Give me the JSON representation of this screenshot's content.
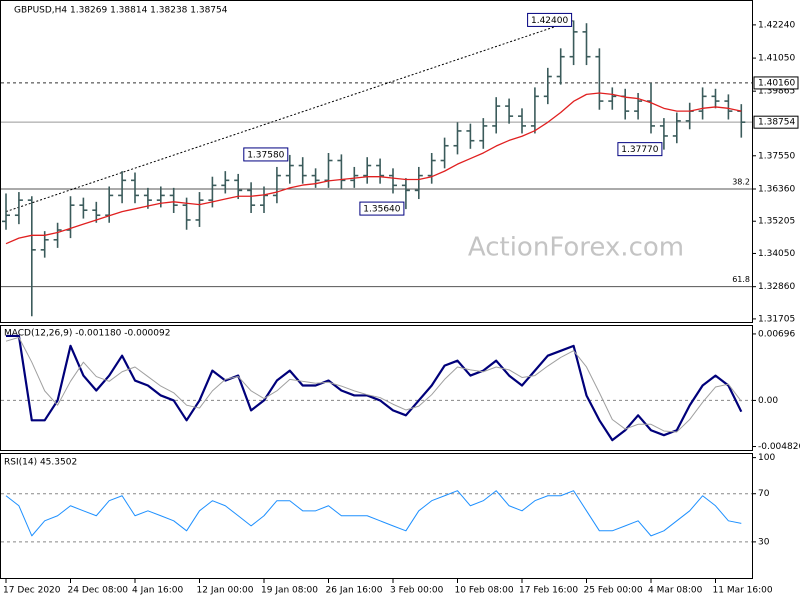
{
  "chart_data": [
    {
      "type": "ohlc",
      "title": "GBPUSD,H4 1.38269 1.38814 1.38238 1.38754",
      "color": "#3b5b5b",
      "categories": [
        "17 Dec 2020",
        null,
        null,
        null,
        null,
        "24 Dec 08:00",
        null,
        null,
        null,
        null,
        "4 Jan 16:00",
        null,
        null,
        null,
        null,
        "12 Jan 00:00",
        null,
        null,
        null,
        null,
        "19 Jan 08:00",
        null,
        null,
        null,
        null,
        "26 Jan 16:00",
        null,
        null,
        null,
        null,
        "3 Feb 00:00",
        null,
        null,
        null,
        null,
        "10 Feb 08:00",
        null,
        null,
        null,
        null,
        "17 Feb 16:00",
        null,
        null,
        null,
        null,
        "25 Feb 00:00",
        null,
        null,
        null,
        null,
        "4 Mar 08:00",
        null,
        null,
        null,
        null,
        "11 Mar 16:00",
        null,
        null
      ],
      "open": [
        1.352,
        1.3542,
        1.3596,
        1.3418,
        1.3454,
        1.3489,
        1.3578,
        1.356,
        1.3542,
        1.3613,
        1.3667,
        1.3613,
        1.3596,
        1.3613,
        1.3578,
        1.3525,
        1.3596,
        1.3649,
        1.3667,
        1.3631,
        1.3578,
        1.3613,
        1.3684,
        1.372,
        1.3684,
        1.3667,
        1.3738,
        1.3667,
        1.3684,
        1.372,
        1.3684,
        1.3649,
        1.3631,
        1.3684,
        1.3738,
        1.3791,
        1.3844,
        1.3809,
        1.3862,
        1.3933,
        1.3897,
        1.3862,
        1.3968,
        1.4039,
        1.411,
        1.4199,
        1.411,
        1.3951,
        1.3968,
        1.3915,
        1.3951,
        1.3862,
        1.3826,
        1.388,
        1.3915,
        1.3968,
        1.3951,
        1.3915
      ],
      "high": [
        1.362,
        1.3625,
        1.361,
        1.3485,
        1.3515,
        1.361,
        1.3605,
        1.359,
        1.3645,
        1.37,
        1.3695,
        1.364,
        1.3645,
        1.364,
        1.3605,
        1.3625,
        1.368,
        1.37,
        1.369,
        1.366,
        1.3645,
        1.3715,
        1.3758,
        1.375,
        1.371,
        1.3765,
        1.376,
        1.3715,
        1.375,
        1.3745,
        1.371,
        1.3675,
        1.3715,
        1.3765,
        1.382,
        1.3875,
        1.387,
        1.389,
        1.3965,
        1.396,
        1.3925,
        1.4,
        1.407,
        1.414,
        1.424,
        1.423,
        1.414,
        1.4,
        1.3995,
        1.398,
        1.4016,
        1.389,
        1.391,
        1.3945,
        1.4,
        1.3995,
        1.3975,
        1.394
      ],
      "low": [
        1.349,
        1.351,
        1.318,
        1.339,
        1.3425,
        1.346,
        1.353,
        1.3515,
        1.3515,
        1.3585,
        1.3585,
        1.3565,
        1.357,
        1.355,
        1.349,
        1.35,
        1.357,
        1.362,
        1.36,
        1.355,
        1.355,
        1.3585,
        1.3655,
        1.3655,
        1.364,
        1.364,
        1.3635,
        1.364,
        1.3655,
        1.3655,
        1.362,
        1.3564,
        1.36,
        1.3655,
        1.371,
        1.376,
        1.378,
        1.378,
        1.3835,
        1.387,
        1.3835,
        1.3835,
        1.394,
        1.401,
        1.408,
        1.408,
        1.392,
        1.392,
        1.3885,
        1.3885,
        1.3835,
        1.3777,
        1.38,
        1.385,
        1.3885,
        1.3925,
        1.3885,
        1.382
      ],
      "close": [
        1.3542,
        1.3596,
        1.3418,
        1.3454,
        1.3489,
        1.3578,
        1.356,
        1.3542,
        1.3613,
        1.3667,
        1.3613,
        1.3596,
        1.3613,
        1.3578,
        1.3525,
        1.3596,
        1.3649,
        1.3667,
        1.3631,
        1.3578,
        1.3613,
        1.3684,
        1.372,
        1.3684,
        1.3667,
        1.3738,
        1.3667,
        1.3684,
        1.372,
        1.3684,
        1.3649,
        1.3631,
        1.3684,
        1.3738,
        1.3791,
        1.3844,
        1.3809,
        1.3862,
        1.3933,
        1.3897,
        1.3862,
        1.3968,
        1.4039,
        1.411,
        1.4199,
        1.411,
        1.3951,
        1.3968,
        1.3915,
        1.3951,
        1.3862,
        1.3826,
        1.388,
        1.3915,
        1.3968,
        1.3951,
        1.3915,
        1.38754
      ],
      "series": [
        {
          "color": "#e02020",
          "values": [
            1.344,
            1.346,
            1.347,
            1.347,
            1.348,
            1.3495,
            1.351,
            1.3525,
            1.354,
            1.3555,
            1.3565,
            1.3575,
            1.3585,
            1.359,
            1.3585,
            1.358,
            1.359,
            1.36,
            1.361,
            1.361,
            1.3615,
            1.3625,
            1.364,
            1.365,
            1.3655,
            1.3665,
            1.367,
            1.3675,
            1.368,
            1.368,
            1.3675,
            1.367,
            1.367,
            1.368,
            1.37,
            1.3725,
            1.3745,
            1.3765,
            1.379,
            1.381,
            1.3825,
            1.3845,
            1.3875,
            1.391,
            1.395,
            1.3975,
            1.398,
            1.3975,
            1.3965,
            1.396,
            1.3945,
            1.3925,
            1.3915,
            1.3915,
            1.3925,
            1.393,
            1.3925,
            1.3915
          ]
        }
      ],
      "ylim": [
        1.3163,
        1.4306
      ],
      "yticks": [
        {
          "value": 1.4224,
          "label": "1.42240"
        },
        {
          "value": 1.4105,
          "label": "1.41050"
        },
        1.39865,
        {
          "value": 1.3755,
          "label": "1.37550"
        },
        {
          "value": 1.3636,
          "label": "1.36360"
        },
        1.35205,
        {
          "value": 1.3405,
          "label": "1.34050"
        },
        {
          "value": 1.3286,
          "label": "1.32860"
        },
        1.31705
      ],
      "annotations": [
        {
          "text": "1.42400",
          "value": 1.424,
          "at": 44
        },
        {
          "text": "1.37580",
          "value": 1.3758,
          "at": 22
        },
        {
          "text": "1.35640",
          "value": 1.3564,
          "at": 31
        },
        {
          "text": "1.37770",
          "value": 1.3777,
          "at": 51
        }
      ],
      "levels": [
        {
          "value": 1.4016,
          "label": "1.40160",
          "line": "dashed"
        },
        {
          "value": 1.38754,
          "label": "1.38754",
          "line": "solid"
        }
      ],
      "fib_levels": [
        {
          "text": "38.2",
          "price": 1.3636
        },
        {
          "text": "61.8",
          "price": 1.3286
        }
      ],
      "trendline": {
        "from": [
          0,
          1.3555
        ],
        "to": [
          44,
          1.424
        ]
      },
      "watermark": "ActionForex.com"
    },
    {
      "type": "line",
      "title": "MACD(12,26,9) -0.001180 -0.000092",
      "series": [
        {
          "color": "#00007a",
          "width": 2.2,
          "values": [
            0.00675,
            0.00675,
            -0.00208,
            -0.00208,
            0,
            0.00571,
            0.0026,
            0.00104,
            0.0026,
            0.00468,
            0.00208,
            0.00156,
            0.00052,
            0,
            -0.00208,
            0,
            0.00312,
            0.00208,
            0.0026,
            -0.00104,
            0,
            0.00208,
            0.00312,
            0.00156,
            0.00156,
            0.00208,
            0.00104,
            0.00052,
            0.00052,
            0,
            -0.00104,
            -0.00156,
            0,
            0.00156,
            0.00364,
            0.00416,
            0.0026,
            0.00312,
            0.00416,
            0.0026,
            0.00156,
            0.00312,
            0.00468,
            0.00519,
            0.00571,
            0.00052,
            -0.00208,
            -0.00416,
            -0.00312,
            -0.00156,
            -0.00312,
            -0.00364,
            -0.00312,
            -0.00052,
            0.00156,
            0.0026,
            0.00156,
            -0.00118
          ]
        },
        {
          "color": "#a0a0a0",
          "width": 1,
          "values": [
            0.0062,
            0.0066,
            0.004,
            0.001,
            -0.0005,
            0.002,
            0.004,
            0.0025,
            0.002,
            0.003,
            0.0035,
            0.0025,
            0.0015,
            0.0008,
            -0.0005,
            -0.0008,
            0.001,
            0.0022,
            0.0025,
            0.001,
            0.0002,
            0.001,
            0.0022,
            0.002,
            0.0018,
            0.0019,
            0.0015,
            0.001,
            0.0006,
            0.0003,
            -0.0004,
            -0.001,
            -0.0006,
            0.0006,
            0.0022,
            0.0035,
            0.0032,
            0.003,
            0.0035,
            0.0032,
            0.0024,
            0.0026,
            0.0036,
            0.0045,
            0.0052,
            0.0035,
            0.0008,
            -0.002,
            -0.003,
            -0.0025,
            -0.0025,
            -0.0032,
            -0.0033,
            -0.002,
            -0.0002,
            0.0014,
            0.0017,
            -9.2e-05
          ]
        }
      ],
      "ylim": [
        -0.00519,
        0.00779
      ],
      "yticks": [
        0.00696,
        {
          "value": 0,
          "label": "0.00"
        },
        -0.004826
      ],
      "dashed_lines": [
        0
      ]
    },
    {
      "type": "line",
      "title": "RSI(14) 45.3502",
      "series": [
        {
          "color": "#1e90ff",
          "width": 1,
          "values": [
            68.3,
            60,
            35,
            47.5,
            51.7,
            60,
            55.8,
            51.7,
            64.2,
            68.3,
            51.7,
            55.8,
            51.7,
            47.5,
            39.2,
            55.8,
            64.2,
            60,
            51.7,
            43.3,
            51.7,
            64.2,
            64.2,
            55.8,
            55.8,
            60,
            51.7,
            51.7,
            51.7,
            47.5,
            43.3,
            39.2,
            55.8,
            64.2,
            68.3,
            72.5,
            60,
            64.2,
            72.5,
            60,
            55.8,
            64.2,
            68.3,
            68.3,
            72.5,
            55.8,
            39.2,
            39.2,
            43.3,
            47.5,
            35,
            39.2,
            47.5,
            55.8,
            68.3,
            60,
            47.5,
            45.3502
          ]
        }
      ],
      "ylim": [
        0,
        103
      ],
      "yticks": [
        100,
        70,
        30
      ],
      "dashed_lines": [
        70,
        30
      ]
    }
  ]
}
